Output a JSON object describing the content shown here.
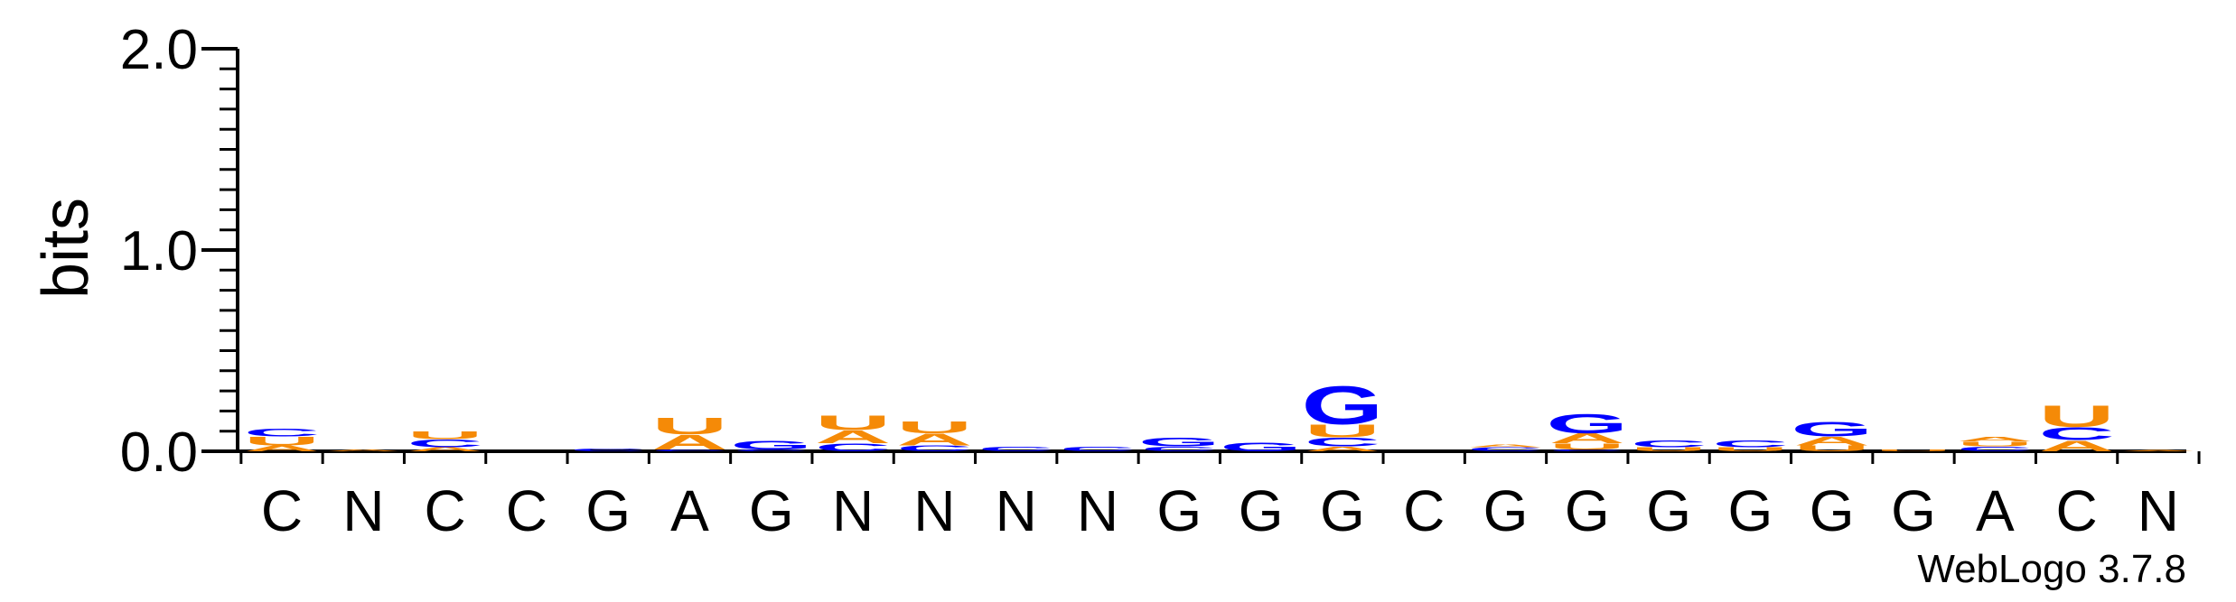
{
  "chart_data": {
    "type": "sequence-logo",
    "ylabel": "bits",
    "ylim": [
      0,
      2.0
    ],
    "y_ticks": [
      {
        "value": 0.0,
        "label": "0.0"
      },
      {
        "value": 1.0,
        "label": "1.0"
      },
      {
        "value": 2.0,
        "label": "2.0"
      }
    ],
    "positions": [
      "C",
      "N",
      "C",
      "C",
      "G",
      "A",
      "G",
      "N",
      "N",
      "N",
      "N",
      "G",
      "G",
      "G",
      "C",
      "G",
      "G",
      "G",
      "G",
      "G",
      "G",
      "A",
      "C",
      "N"
    ],
    "colors": {
      "A": "#f58a07",
      "U": "#f58a07",
      "C": "#0000ff",
      "G": "#0000ff"
    },
    "stacks": [
      [
        {
          "letter": "A",
          "height": 0.03
        },
        {
          "letter": "U",
          "height": 0.045
        },
        {
          "letter": "C",
          "height": 0.04
        }
      ],
      [
        {
          "letter": "A",
          "height": 0.008
        }
      ],
      [
        {
          "letter": "A",
          "height": 0.02
        },
        {
          "letter": "C",
          "height": 0.04
        },
        {
          "letter": "U",
          "height": 0.04
        }
      ],
      [],
      [
        {
          "letter": "C",
          "height": 0.015
        }
      ],
      [
        {
          "letter": "C",
          "height": 0.01
        },
        {
          "letter": "A",
          "height": 0.075
        },
        {
          "letter": "U",
          "height": 0.085
        }
      ],
      [
        {
          "letter": "C",
          "height": 0.01
        },
        {
          "letter": "G",
          "height": 0.045
        }
      ],
      [
        {
          "letter": "C",
          "height": 0.04
        },
        {
          "letter": "A",
          "height": 0.065
        },
        {
          "letter": "U",
          "height": 0.075
        }
      ],
      [
        {
          "letter": "C",
          "height": 0.03
        },
        {
          "letter": "A",
          "height": 0.06
        },
        {
          "letter": "U",
          "height": 0.06
        }
      ],
      [
        {
          "letter": "C",
          "height": 0.025
        }
      ],
      [
        {
          "letter": "C",
          "height": 0.025
        }
      ],
      [
        {
          "letter": "C",
          "height": 0.025
        },
        {
          "letter": "G",
          "height": 0.045
        }
      ],
      [
        {
          "letter": "G",
          "height": 0.045
        }
      ],
      [
        {
          "letter": "A",
          "height": 0.025
        },
        {
          "letter": "C",
          "height": 0.045
        },
        {
          "letter": "U",
          "height": 0.065
        },
        {
          "letter": "G",
          "height": 0.195
        }
      ],
      [],
      [
        {
          "letter": "C",
          "height": 0.02
        },
        {
          "letter": "A",
          "height": 0.015
        }
      ],
      [
        {
          "letter": "C",
          "height": 0.01
        },
        {
          "letter": "U",
          "height": 0.03
        },
        {
          "letter": "A",
          "height": 0.05
        },
        {
          "letter": "G",
          "height": 0.1
        }
      ],
      [
        {
          "letter": "U",
          "height": 0.02
        },
        {
          "letter": "C",
          "height": 0.035
        }
      ],
      [
        {
          "letter": "U",
          "height": 0.02
        },
        {
          "letter": "C",
          "height": 0.035
        }
      ],
      [
        {
          "letter": "U",
          "height": 0.03
        },
        {
          "letter": "A",
          "height": 0.045
        },
        {
          "letter": "G",
          "height": 0.075
        }
      ],
      [
        {
          "letter": "U",
          "height": 0.01
        }
      ],
      [
        {
          "letter": "C",
          "height": 0.025
        },
        {
          "letter": "U",
          "height": 0.025
        },
        {
          "letter": "A",
          "height": 0.025
        }
      ],
      [
        {
          "letter": "A",
          "height": 0.055
        },
        {
          "letter": "C",
          "height": 0.065
        },
        {
          "letter": "U",
          "height": 0.11
        }
      ],
      [
        {
          "letter": "A",
          "height": 0.005
        }
      ]
    ],
    "credit": "WebLogo 3.7.8"
  }
}
